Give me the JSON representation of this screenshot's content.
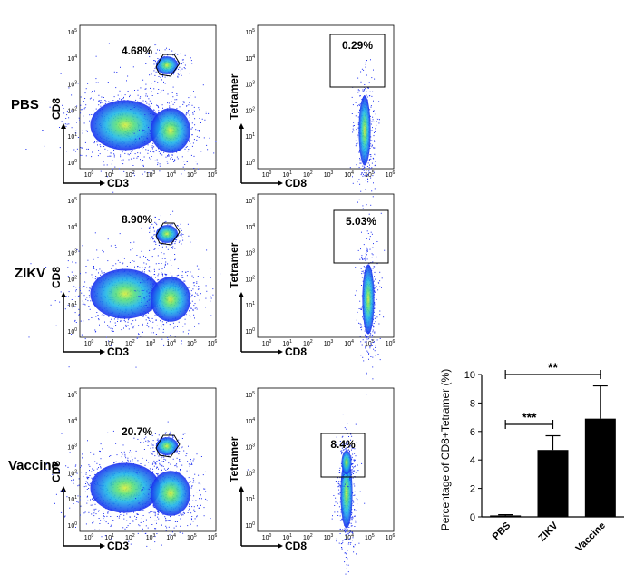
{
  "colors": {
    "cloud_outer": "#1b2df0",
    "cloud_mid": "#1fb7e8",
    "cloud_inner": "#58e07a",
    "cloud_core": "#d8ef3a",
    "bar_fill": "#000000",
    "frame": "#000000"
  },
  "rows": [
    {
      "label": "PBS",
      "left": {
        "xlabel": "CD3",
        "ylabel": "CD8",
        "gate_percent": "4.68%"
      },
      "right": {
        "xlabel": "CD8",
        "ylabel": "Tetramer",
        "gate_percent": "0.29%"
      }
    },
    {
      "label": "ZIKV",
      "left": {
        "xlabel": "CD3",
        "ylabel": "CD8",
        "gate_percent": "8.90%"
      },
      "right": {
        "xlabel": "CD8",
        "ylabel": "Tetramer",
        "gate_percent": "5.03%"
      }
    },
    {
      "label": "Vaccine",
      "left": {
        "xlabel": "CD3",
        "ylabel": "CD8",
        "gate_percent": "20.7%"
      },
      "right": {
        "xlabel": "CD8",
        "ylabel": "Tetramer",
        "gate_percent": "8.4%"
      }
    }
  ],
  "flow_axis": {
    "tick_base": "10",
    "exponents": [
      "0",
      "1",
      "2",
      "3",
      "4",
      "5",
      "6"
    ],
    "y_exponents": [
      "0",
      "1",
      "2",
      "3",
      "4",
      "5"
    ]
  },
  "chart_data": {
    "type": "bar",
    "categories": [
      "PBS",
      "ZIKV",
      "Vaccine"
    ],
    "values": [
      0.1,
      4.7,
      6.9
    ],
    "error": [
      0.05,
      1.0,
      2.3
    ],
    "ylabel": "Percentage of CD8+Tetramer (%)",
    "xlabel": "",
    "ylim": [
      0,
      10
    ],
    "yticks": [
      "0",
      "2",
      "4",
      "6",
      "8",
      "10"
    ],
    "significance": [
      {
        "from": "PBS",
        "to": "ZIKV",
        "label": "***"
      },
      {
        "from": "PBS",
        "to": "Vaccine",
        "label": "**"
      }
    ],
    "grid": false
  }
}
